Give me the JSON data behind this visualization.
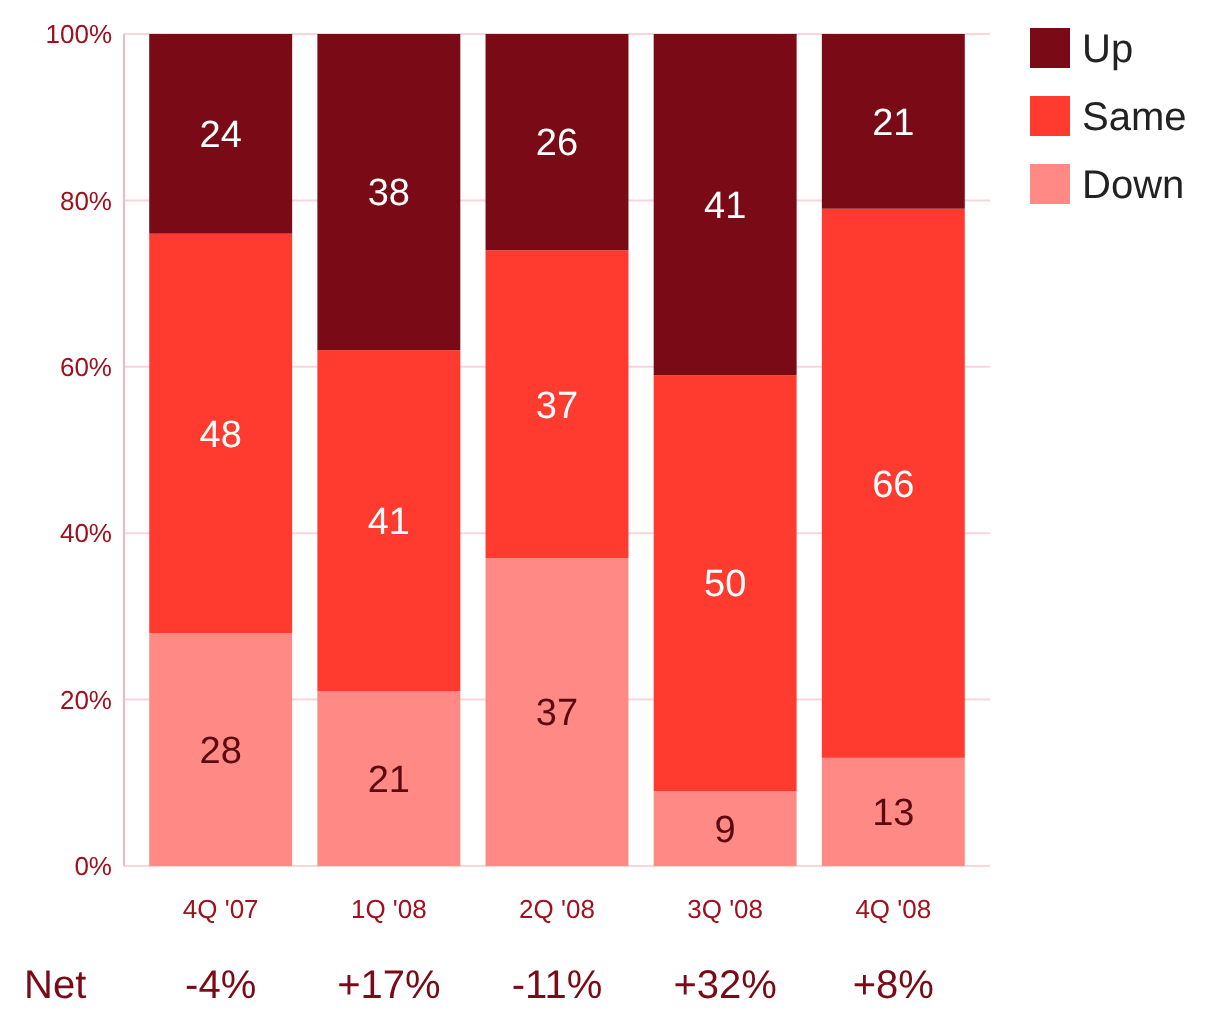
{
  "chart_data": {
    "type": "bar",
    "stacked": true,
    "categories": [
      "4Q '07",
      "1Q '08",
      "2Q '08",
      "3Q '08",
      "4Q '08"
    ],
    "series": [
      {
        "name": "Down",
        "color": "#ff8a85",
        "values": [
          28,
          21,
          37,
          9,
          13
        ]
      },
      {
        "name": "Same",
        "color": "#ff3b30",
        "values": [
          48,
          41,
          37,
          50,
          66
        ]
      },
      {
        "name": "Up",
        "color": "#7a0a16",
        "values": [
          24,
          38,
          26,
          41,
          21
        ]
      }
    ],
    "ylim": [
      0,
      100
    ],
    "yticks": [
      {
        "value": 0,
        "label": "0%"
      },
      {
        "value": 20,
        "label": "20%"
      },
      {
        "value": 40,
        "label": "40%"
      },
      {
        "value": 60,
        "label": "60%"
      },
      {
        "value": 80,
        "label": "80%"
      },
      {
        "value": 100,
        "label": "100%"
      }
    ],
    "grid": "y",
    "legend": "top right",
    "data_labels": true,
    "annotations": [
      "Net",
      "-4%",
      "+17%",
      "-11%",
      "+32%",
      "+8%"
    ]
  }
}
